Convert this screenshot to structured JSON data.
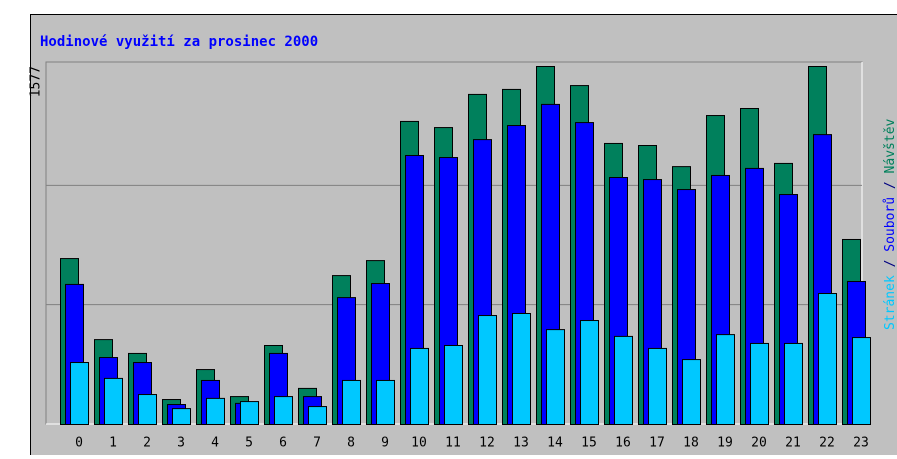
{
  "chart_data": {
    "type": "bar",
    "title": "Hodinové využití za prosinec 2000",
    "categories": [
      "0",
      "1",
      "2",
      "3",
      "4",
      "5",
      "6",
      "7",
      "8",
      "9",
      "10",
      "11",
      "12",
      "13",
      "14",
      "15",
      "16",
      "17",
      "18",
      "19",
      "20",
      "21",
      "22",
      "23"
    ],
    "series": [
      {
        "name": "Návštěv",
        "color": "#00805c",
        "values": [
          731,
          374,
          313,
          110,
          242,
          123,
          348,
          159,
          656,
          722,
          1335,
          1308,
          1454,
          1476,
          1577,
          1493,
          1238,
          1229,
          1136,
          1361,
          1392,
          1150,
          1577,
          815
        ]
      },
      {
        "name": "Souborů",
        "color": "#0000ff",
        "values": [
          617,
          295,
          273,
          88,
          194,
          93,
          313,
          123,
          559,
          621,
          1185,
          1176,
          1255,
          1317,
          1410,
          1330,
          1088,
          1079,
          1035,
          1097,
          1128,
          1013,
          1277,
          630
        ]
      },
      {
        "name": "Stránek",
        "color": "#00c8ff",
        "values": [
          273,
          203,
          132,
          70,
          115,
          101,
          123,
          79,
          194,
          194,
          335,
          348,
          480,
          489,
          418,
          458,
          388,
          335,
          286,
          396,
          357,
          357,
          577,
          383
        ]
      }
    ],
    "legend_separator": " / ",
    "ylim": [
      0,
      1577
    ],
    "yticks": [
      1577
    ],
    "ygrid": [
      526,
      1051
    ],
    "grid": true
  }
}
